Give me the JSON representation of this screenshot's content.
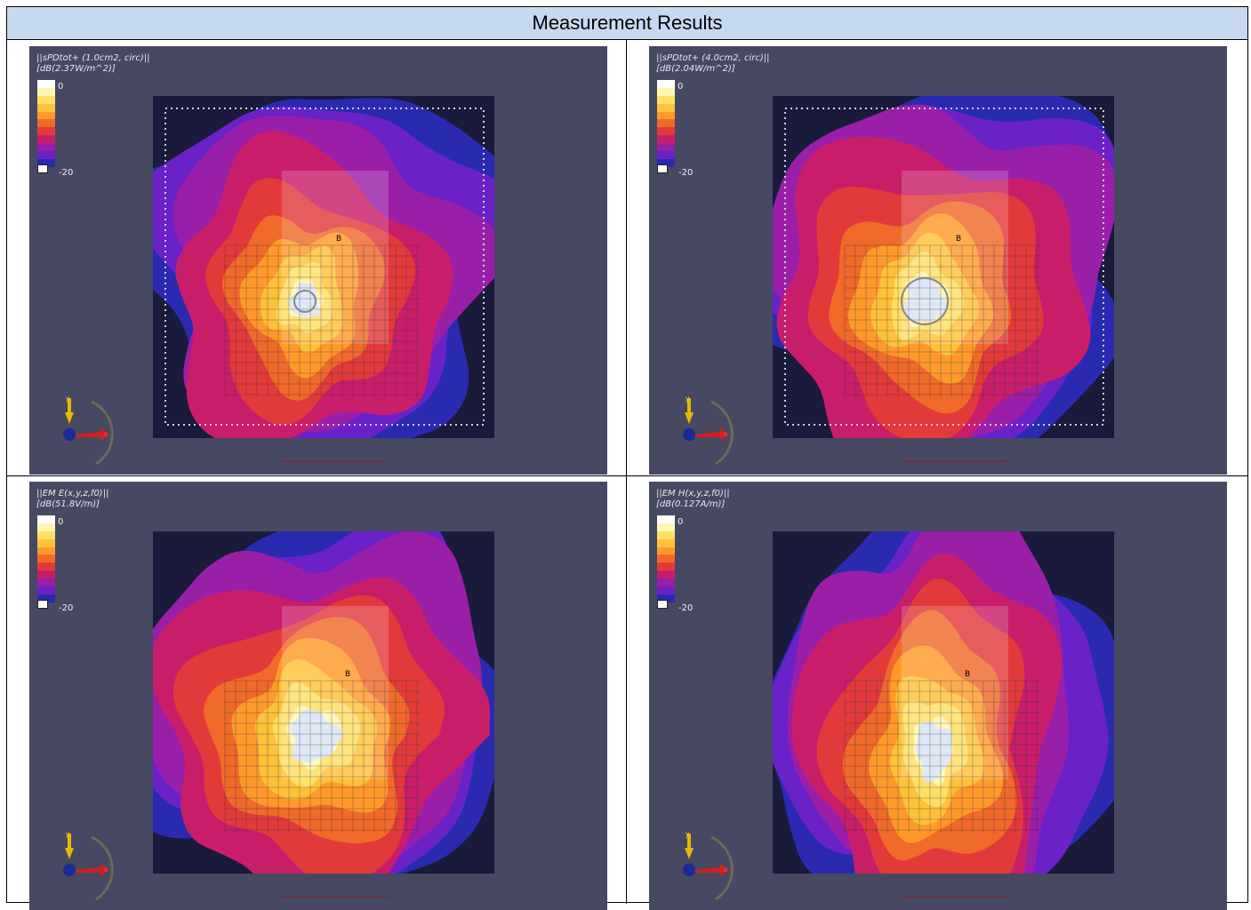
{
  "header": {
    "title": "Measurement Results"
  },
  "panels": [
    {
      "title": "||sPDtot+ (1.0cm2, circ)||",
      "unit": "[dB(2.37W/m^2)]",
      "scale_max": "0",
      "scale_min": "-20",
      "marker": "B"
    },
    {
      "title": "||sPDtot+ (4.0cm2, circ)||",
      "unit": "[dB(2.04W/m^2)]",
      "scale_max": "0",
      "scale_min": "-20",
      "marker": "B"
    },
    {
      "title": "||EM E(x,y,z,f0)||",
      "unit": "[dB(51.8V/m)]",
      "scale_max": "0",
      "scale_min": "-20",
      "marker": "B"
    },
    {
      "title": "||EM H(x,y,z,f0)||",
      "unit": "[dB(0.127A/m)]",
      "scale_max": "0",
      "scale_min": "-20",
      "marker": "B"
    }
  ],
  "axes": {
    "y": "y",
    "x": "x"
  },
  "colorscale": [
    "#ffffff",
    "#fff7b0",
    "#ffe066",
    "#ffc23a",
    "#ff9a2a",
    "#f06a2a",
    "#e23a3a",
    "#c81e6a",
    "#9a1fa8",
    "#6a22c8",
    "#2a2ab0"
  ],
  "panel_background": "#474862"
}
